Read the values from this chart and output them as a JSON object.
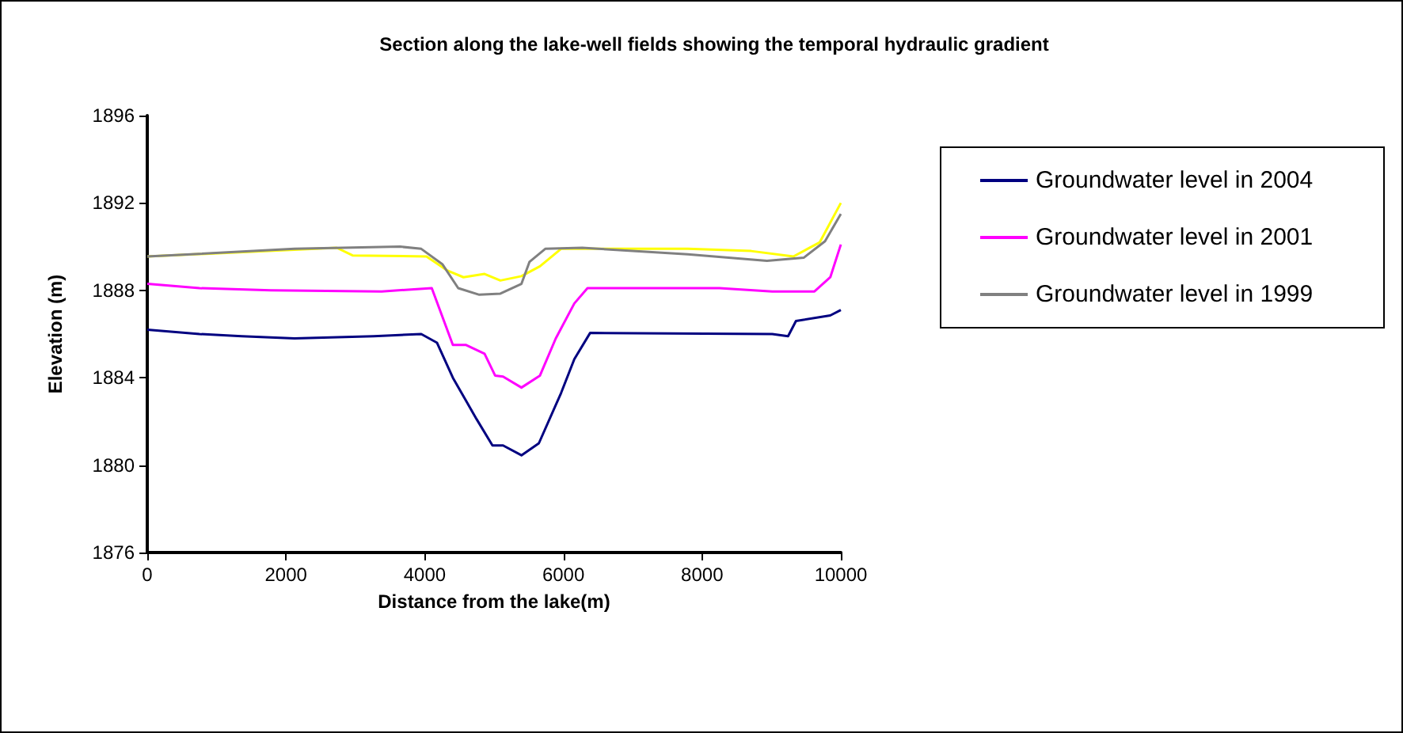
{
  "chart_data": {
    "type": "line",
    "title": "Section along the lake-well fields showing the temporal hydraulic gradient",
    "xlabel": "Distance from the lake(m)",
    "ylabel": "Elevation (m)",
    "xlim": [
      0,
      10000
    ],
    "xticks": [
      0,
      2000,
      4000,
      6000,
      8000,
      10000
    ],
    "ylim": [
      1876,
      1896
    ],
    "yticks": [
      1876,
      1880,
      1884,
      1888,
      1892,
      1896
    ],
    "grid": false,
    "legend": "right",
    "marker": "none",
    "series": [
      {
        "color": "#ffff00",
        "x": [
          0,
          2732,
          2960,
          4026,
          4330,
          4559,
          4863,
          5091,
          5395,
          5662,
          5966,
          7793,
          8707,
          9316,
          9696,
          10000
        ],
        "values": [
          1889.55,
          1889.95,
          1889.6,
          1889.55,
          1888.9,
          1888.6,
          1888.75,
          1888.45,
          1888.65,
          1889.1,
          1889.9,
          1889.9,
          1889.8,
          1889.55,
          1890.2,
          1892.0
        ]
      },
      {
        "name": "Groundwater level in 2004",
        "color": "#000080",
        "x": [
          0,
          753,
          1363,
          2123,
          3265,
          3950,
          4178,
          4406,
          4749,
          4977,
          5130,
          5395,
          5646,
          5966,
          6157,
          6385,
          9011,
          9239,
          9353,
          9847,
          10000
        ],
        "values": [
          1886.2,
          1886.0,
          1885.9,
          1885.8,
          1885.9,
          1886.0,
          1885.6,
          1884.0,
          1882.1,
          1880.9,
          1880.9,
          1880.45,
          1881.0,
          1883.3,
          1884.85,
          1886.05,
          1886.0,
          1885.9,
          1886.6,
          1886.85,
          1887.1
        ]
      },
      {
        "name": "Groundwater level in 2001",
        "color": "#ff00ff",
        "x": [
          0,
          753,
          1781,
          3379,
          4102,
          4406,
          4597,
          4863,
          5015,
          5130,
          5395,
          5662,
          5890,
          6157,
          6347,
          6842,
          8250,
          9011,
          9620,
          9848,
          10000
        ],
        "values": [
          1888.3,
          1888.1,
          1888.0,
          1887.95,
          1888.1,
          1885.5,
          1885.5,
          1885.1,
          1884.1,
          1884.05,
          1883.55,
          1884.1,
          1885.8,
          1887.4,
          1888.1,
          1888.1,
          1888.1,
          1887.95,
          1887.95,
          1888.6,
          1890.1
        ]
      },
      {
        "name": "Groundwater level in 1999",
        "color": "#808080",
        "x": [
          0,
          2123,
          3645,
          3950,
          4254,
          4483,
          4787,
          5091,
          5395,
          5510,
          5738,
          6271,
          7793,
          8935,
          9468,
          9772,
          10000
        ],
        "values": [
          1889.55,
          1889.9,
          1890.0,
          1889.9,
          1889.2,
          1888.1,
          1887.8,
          1887.85,
          1888.3,
          1889.3,
          1889.9,
          1889.95,
          1889.65,
          1889.35,
          1889.5,
          1890.25,
          1891.5
        ]
      }
    ]
  }
}
